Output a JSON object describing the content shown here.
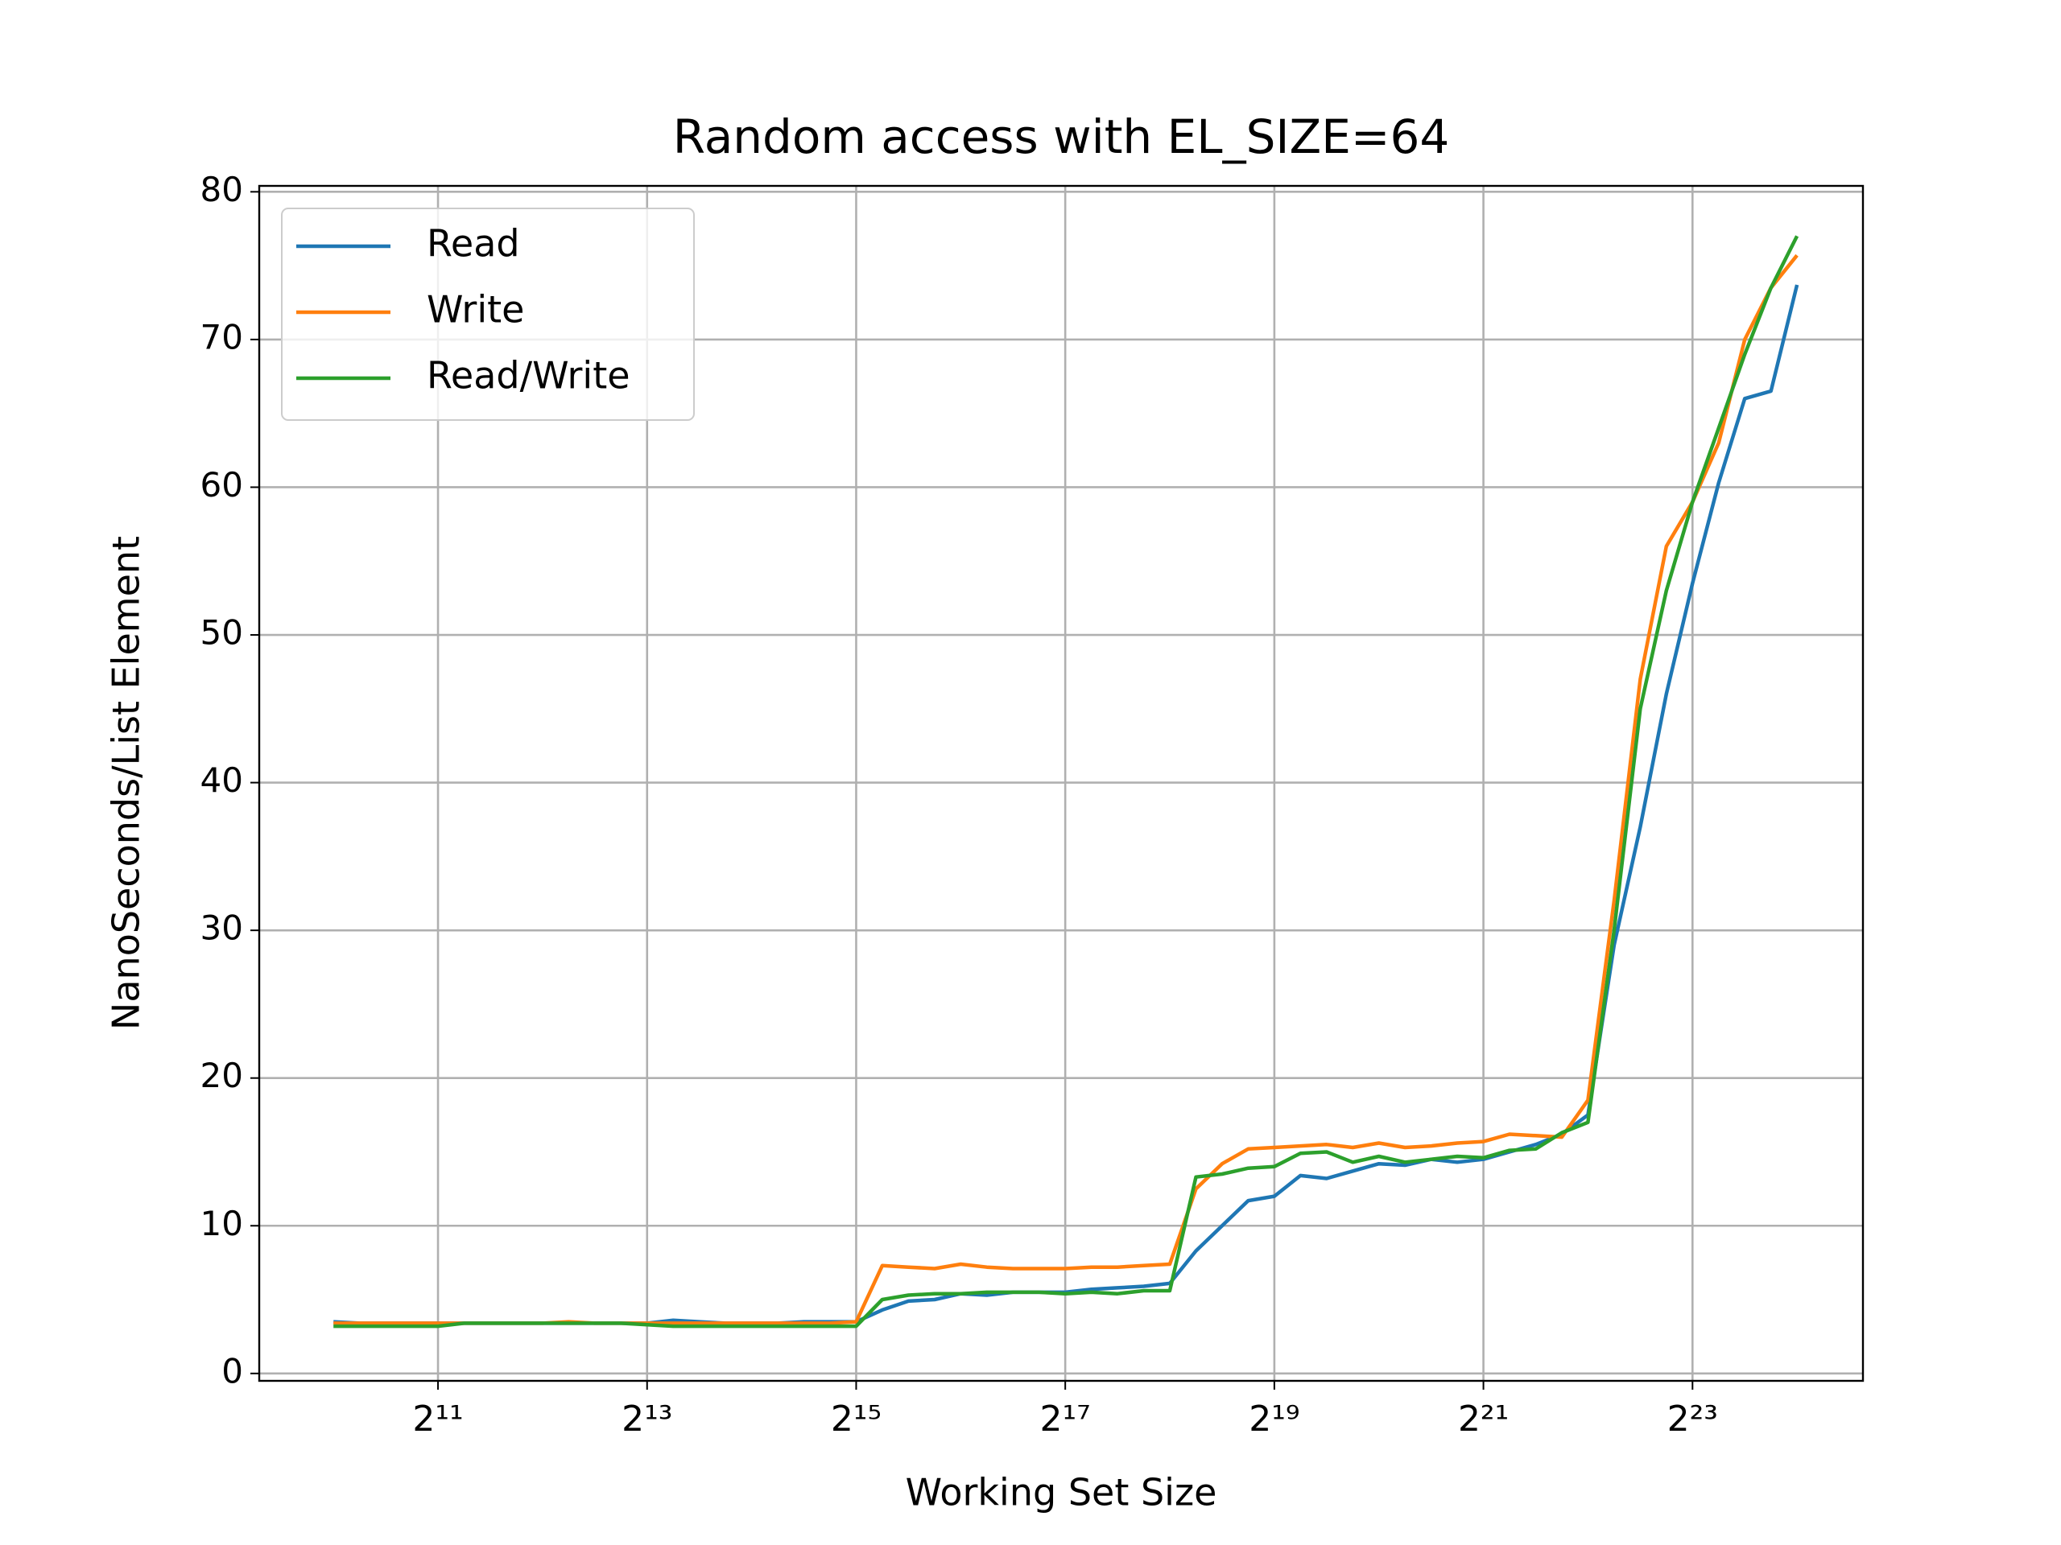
{
  "chart_data": {
    "type": "line",
    "title": "Random access with EL_SIZE=64",
    "xlabel": "Working Set Size",
    "ylabel": "NanoSeconds/List Element",
    "xscale": "log2",
    "grid": true,
    "legend": "upper left",
    "xlim": [
      626,
      25970000
    ],
    "ylim": [
      -0.5,
      80.4
    ],
    "xticks": [
      {
        "value": 2048,
        "label": "2¹¹"
      },
      {
        "value": 8192,
        "label": "2¹³"
      },
      {
        "value": 32768,
        "label": "2¹⁵"
      },
      {
        "value": 131072,
        "label": "2¹⁷"
      },
      {
        "value": 524288,
        "label": "2¹⁹"
      },
      {
        "value": 2097152,
        "label": "2²¹"
      },
      {
        "value": 8388608,
        "label": "2²³"
      }
    ],
    "yticks": [
      0,
      10,
      20,
      30,
      40,
      50,
      60,
      70,
      80
    ],
    "x": [
      1024,
      1218,
      1448,
      1722,
      2048,
      2435,
      2896,
      3444,
      4096,
      4871,
      5793,
      6889,
      8192,
      9742,
      11585,
      13777,
      16384,
      19484,
      23170,
      27554,
      32768,
      38968,
      46341,
      55109,
      65536,
      77936,
      92682,
      110218,
      131072,
      155872,
      185364,
      220436,
      262144,
      311744,
      370728,
      440872,
      524288,
      623487,
      741455,
      881744,
      1048576,
      1246974,
      1482910,
      1763488,
      2097152,
      2493948,
      2965821,
      3526975,
      4194304,
      4987896,
      5931642,
      7053950,
      8388608,
      9975792,
      11863283,
      14107901,
      16777216
    ],
    "series": [
      {
        "name": "Read",
        "color": "#1f77b4",
        "values": [
          3.5,
          3.4,
          3.4,
          3.4,
          3.4,
          3.4,
          3.4,
          3.4,
          3.4,
          3.4,
          3.4,
          3.4,
          3.4,
          3.6,
          3.5,
          3.4,
          3.4,
          3.4,
          3.5,
          3.5,
          3.5,
          4.3,
          4.9,
          5.0,
          5.4,
          5.3,
          5.5,
          5.5,
          5.5,
          5.7,
          5.8,
          5.9,
          6.1,
          8.3,
          10.0,
          11.7,
          12.0,
          13.4,
          13.2,
          13.7,
          14.2,
          14.1,
          14.5,
          14.3,
          14.5,
          15.0,
          15.5,
          16.2,
          17.5,
          29,
          37,
          46,
          53.5,
          60.3,
          66,
          66.5,
          73.7
        ]
      },
      {
        "name": "Write",
        "color": "#ff7f0e",
        "values": [
          3.4,
          3.4,
          3.4,
          3.4,
          3.4,
          3.4,
          3.4,
          3.4,
          3.4,
          3.5,
          3.4,
          3.4,
          3.4,
          3.4,
          3.4,
          3.4,
          3.4,
          3.4,
          3.4,
          3.4,
          3.5,
          7.3,
          7.2,
          7.1,
          7.4,
          7.2,
          7.1,
          7.1,
          7.1,
          7.2,
          7.2,
          7.3,
          7.4,
          12.5,
          14.2,
          15.2,
          15.3,
          15.4,
          15.5,
          15.3,
          15.6,
          15.3,
          15.4,
          15.6,
          15.7,
          16.2,
          16.1,
          16.0,
          18.5,
          32,
          47,
          56,
          59,
          63,
          70,
          73.5,
          75.7
        ]
      },
      {
        "name": "Read/Write",
        "color": "#2ca02c",
        "values": [
          3.2,
          3.2,
          3.2,
          3.2,
          3.2,
          3.4,
          3.4,
          3.4,
          3.4,
          3.4,
          3.4,
          3.4,
          3.3,
          3.2,
          3.2,
          3.2,
          3.2,
          3.2,
          3.2,
          3.2,
          3.2,
          5.0,
          5.3,
          5.4,
          5.4,
          5.5,
          5.5,
          5.5,
          5.4,
          5.5,
          5.4,
          5.6,
          5.6,
          13.3,
          13.5,
          13.9,
          14.0,
          14.9,
          15.0,
          14.3,
          14.7,
          14.3,
          14.5,
          14.7,
          14.6,
          15.1,
          15.2,
          16.3,
          17.0,
          30,
          45,
          53,
          59,
          64,
          69,
          73.5,
          77
        ]
      }
    ]
  }
}
